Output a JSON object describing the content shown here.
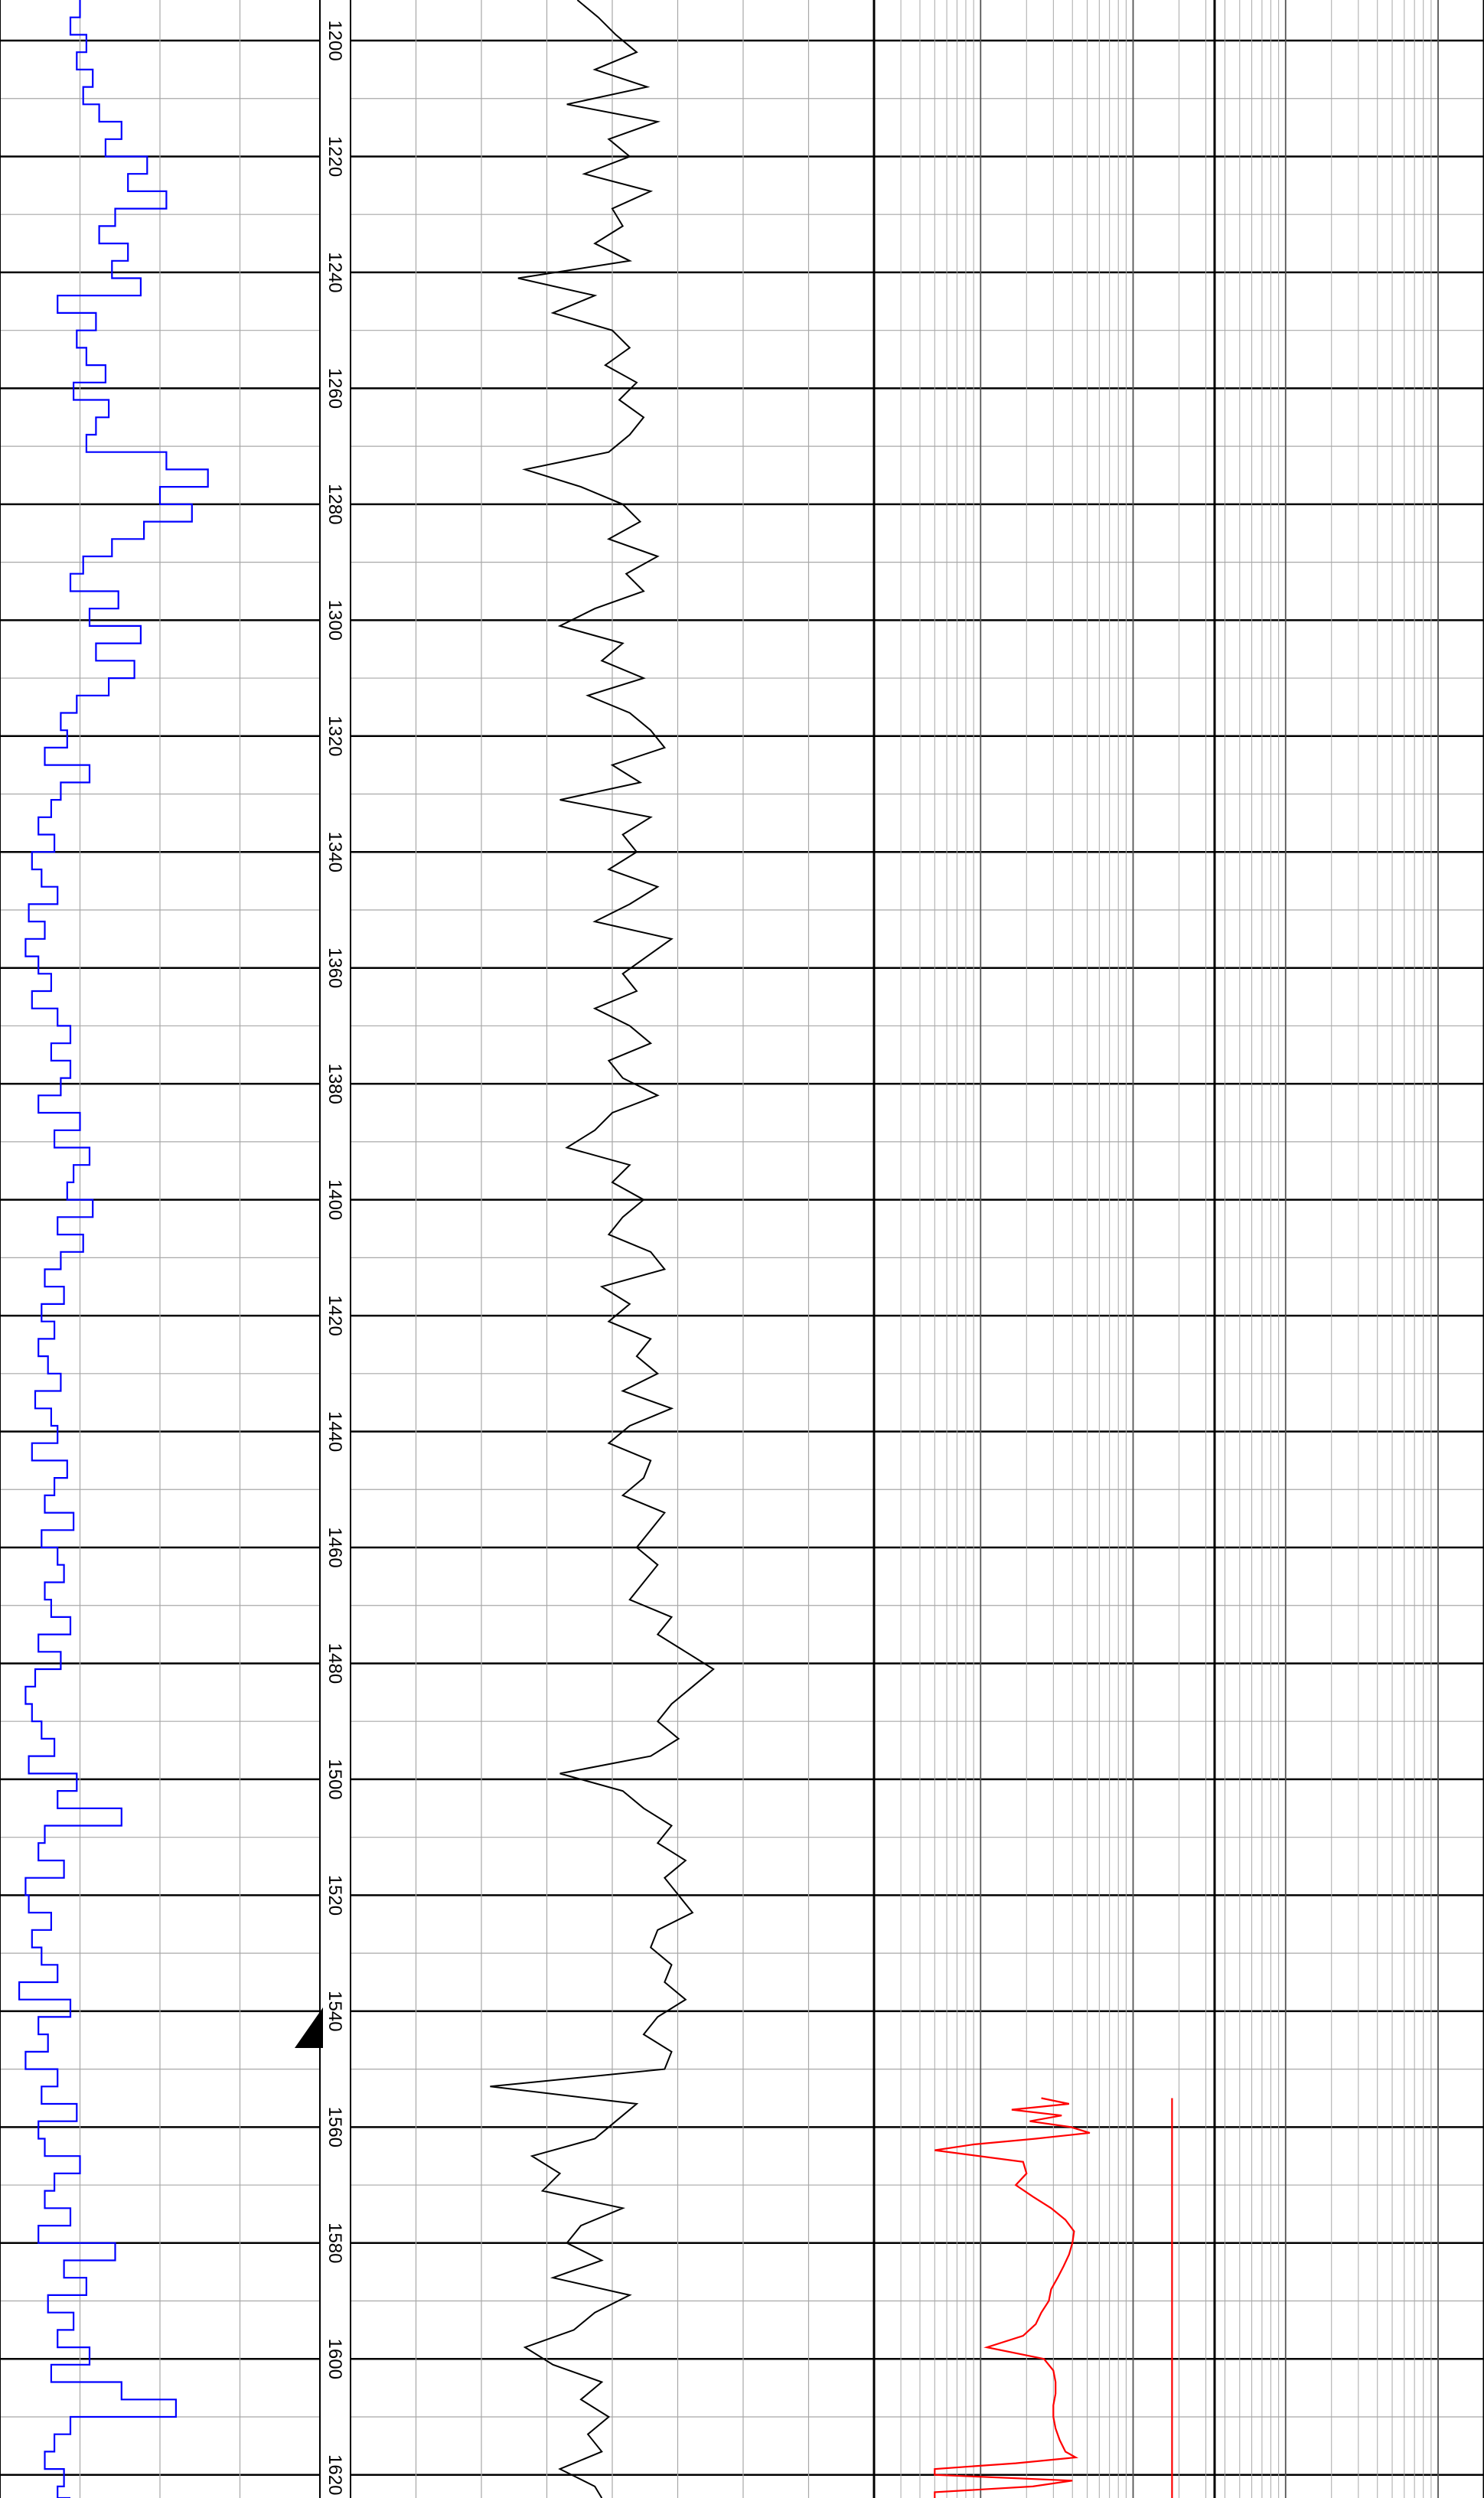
{
  "chart_data": {
    "type": "line",
    "title": "",
    "orientation": "vertical-depth",
    "depth_range": [
      1193,
      1624
    ],
    "depth_major_step": 20,
    "depth_minor_step": 10,
    "depth_labels": [
      "1200",
      "1220",
      "1240",
      "1260",
      "1280",
      "1300",
      "1320",
      "1340",
      "1360",
      "1380",
      "1400",
      "1420",
      "1440",
      "1460",
      "1480",
      "1500",
      "1520",
      "1540",
      "1560",
      "1580",
      "1600",
      "1620"
    ],
    "grid": true,
    "colors": {
      "track1_curve": "#0000ff",
      "track2_curve": "#000000",
      "track3_curves": "#ff0000",
      "grid_major": "#000000",
      "grid_minor": "#a8a8a8",
      "marker": "#000000"
    },
    "marker": {
      "shape": "triangle",
      "depth": 1542
    },
    "track1": {
      "scale": "linear",
      "x_range": [
        0,
        100
      ],
      "style": "step",
      "series": [
        {
          "depth": [
            1193,
            1196,
            1199,
            1202,
            1205,
            1208,
            1211,
            1214,
            1217,
            1220,
            1223,
            1226,
            1229,
            1232,
            1235,
            1238,
            1241,
            1244,
            1247,
            1250,
            1253,
            1256,
            1259,
            1262,
            1265,
            1268,
            1271,
            1274,
            1277,
            1280,
            1283,
            1286,
            1289,
            1292,
            1295,
            1298,
            1301,
            1304,
            1307,
            1310,
            1313,
            1316,
            1319,
            1322,
            1325,
            1328,
            1331,
            1334,
            1337,
            1340,
            1343,
            1346,
            1349,
            1352,
            1355,
            1358,
            1361,
            1364,
            1367,
            1370,
            1373,
            1376,
            1379,
            1382,
            1385,
            1388,
            1391,
            1394,
            1397,
            1400,
            1403,
            1406,
            1409,
            1412,
            1415,
            1418,
            1421,
            1424,
            1427,
            1430,
            1433,
            1436,
            1439,
            1442,
            1445,
            1448,
            1451,
            1454,
            1457,
            1460,
            1463,
            1466,
            1469,
            1472,
            1475,
            1478,
            1481,
            1484,
            1487,
            1490,
            1493,
            1496,
            1499,
            1502,
            1505,
            1508,
            1511,
            1514,
            1517,
            1520,
            1523,
            1526,
            1529,
            1532,
            1535,
            1538,
            1541,
            1544,
            1547,
            1550,
            1553,
            1556,
            1559,
            1562,
            1565,
            1568,
            1571,
            1574,
            1577,
            1580,
            1583,
            1586,
            1589,
            1592,
            1595,
            1598,
            1601,
            1604,
            1607,
            1610,
            1613,
            1616,
            1619,
            1622,
            1624
          ],
          "x": [
            25,
            22,
            27,
            24,
            29,
            26,
            31,
            38,
            33,
            46,
            40,
            52,
            36,
            31,
            40,
            35,
            44,
            18,
            30,
            24,
            27,
            33,
            23,
            34,
            30,
            27,
            52,
            65,
            50,
            60,
            45,
            35,
            26,
            22,
            37,
            28,
            44,
            30,
            42,
            34,
            24,
            19,
            21,
            14,
            28,
            19,
            16,
            12,
            17,
            10,
            13,
            18,
            9,
            14,
            8,
            12,
            16,
            10,
            18,
            22,
            16,
            22,
            19,
            12,
            25,
            17,
            28,
            23,
            21,
            29,
            18,
            26,
            19,
            14,
            20,
            13,
            17,
            12,
            15,
            19,
            11,
            16,
            18,
            10,
            21,
            17,
            14,
            23,
            13,
            18,
            20,
            14,
            16,
            22,
            12,
            19,
            11,
            8,
            10,
            13,
            17,
            9,
            24,
            18,
            38,
            14,
            12,
            20,
            8,
            9,
            16,
            10,
            13,
            18,
            6,
            22,
            12,
            15,
            8,
            18,
            13,
            24,
            12,
            14,
            25,
            17,
            14,
            22,
            12,
            36,
            20,
            27,
            15,
            23,
            18,
            28,
            16,
            38,
            55,
            22,
            17,
            14,
            20,
            18,
            22
          ]
        }
      ]
    },
    "track2": {
      "scale": "linear",
      "x_range": [
        0,
        150
      ],
      "style": "line",
      "series": [
        {
          "depth": [
            1193,
            1196,
            1199,
            1202,
            1205,
            1208,
            1211,
            1214,
            1217,
            1220,
            1223,
            1226,
            1229,
            1232,
            1235,
            1238,
            1241,
            1244,
            1247,
            1250,
            1253,
            1256,
            1259,
            1262,
            1265,
            1268,
            1271,
            1274,
            1277,
            1280,
            1283,
            1286,
            1289,
            1292,
            1295,
            1298,
            1301,
            1304,
            1307,
            1310,
            1313,
            1316,
            1319,
            1322,
            1325,
            1328,
            1331,
            1334,
            1337,
            1340,
            1343,
            1346,
            1349,
            1352,
            1355,
            1358,
            1361,
            1364,
            1367,
            1370,
            1373,
            1376,
            1379,
            1382,
            1385,
            1388,
            1391,
            1394,
            1397,
            1400,
            1403,
            1406,
            1409,
            1412,
            1415,
            1418,
            1421,
            1424,
            1427,
            1430,
            1433,
            1436,
            1439,
            1442,
            1445,
            1448,
            1451,
            1454,
            1457,
            1460,
            1463,
            1466,
            1469,
            1472,
            1475,
            1478,
            1481,
            1484,
            1487,
            1490,
            1493,
            1496,
            1499,
            1502,
            1505,
            1508,
            1511,
            1514,
            1517,
            1520,
            1523,
            1526,
            1529,
            1532,
            1535,
            1538,
            1541,
            1544,
            1547,
            1550,
            1553,
            1556,
            1559,
            1562,
            1565,
            1568,
            1571,
            1574,
            1577,
            1580,
            1583,
            1586,
            1589,
            1592,
            1595,
            1598,
            1601,
            1604,
            1607,
            1610,
            1613,
            1616,
            1619,
            1622,
            1624
          ],
          "x": [
            65,
            71,
            76,
            82,
            70,
            85,
            62,
            88,
            74,
            80,
            67,
            86,
            75,
            78,
            70,
            80,
            48,
            70,
            58,
            75,
            80,
            73,
            82,
            77,
            84,
            80,
            74,
            50,
            66,
            78,
            83,
            74,
            88,
            79,
            84,
            70,
            60,
            78,
            72,
            84,
            68,
            80,
            86,
            90,
            75,
            83,
            60,
            86,
            78,
            82,
            74,
            88,
            80,
            70,
            92,
            85,
            78,
            82,
            70,
            80,
            86,
            74,
            78,
            88,
            75,
            70,
            62,
            80,
            75,
            84,
            78,
            74,
            86,
            90,
            72,
            80,
            74,
            86,
            82,
            88,
            78,
            92,
            80,
            74,
            86,
            84,
            78,
            90,
            86,
            82,
            88,
            84,
            80,
            92,
            88,
            96,
            104,
            98,
            92,
            88,
            94,
            86,
            60,
            78,
            84,
            92,
            88,
            96,
            90,
            94,
            98,
            88,
            86,
            92,
            90,
            96,
            88,
            84,
            92,
            90,
            40,
            82,
            76,
            70,
            52,
            60,
            55,
            78,
            66,
            62,
            72,
            58,
            80,
            70,
            64,
            50,
            58,
            72,
            66,
            74,
            68,
            72,
            60,
            70,
            72
          ]
        }
      ]
    },
    "track3": {
      "scale": "logarithmic",
      "x_range": [
        0.2,
        2000
      ],
      "style": "line",
      "series": [
        {
          "depth": [
            1555,
            1556,
            1557,
            1558,
            1559,
            1560,
            1561,
            1562,
            1563,
            1564,
            1566,
            1568,
            1570,
            1572,
            1574,
            1576,
            1578,
            1580,
            1582,
            1584,
            1586,
            1588,
            1590,
            1592,
            1594,
            1596,
            1598,
            1600,
            1602,
            1604,
            1606,
            1608,
            1610,
            1612,
            1614,
            1616,
            1617,
            1618,
            1619,
            1620,
            1621,
            1622,
            1623,
            1624
          ],
          "x": [
            2.5,
            3.8,
            1.6,
            3.4,
            2.1,
            3.9,
            5.2,
            2.3,
            0.9,
            0.5,
            1.9,
            2.0,
            1.7,
            2.2,
            2.9,
            3.6,
            4.1,
            4.0,
            3.8,
            3.5,
            3.2,
            2.9,
            2.8,
            2.5,
            2.3,
            1.9,
            1.1,
            2.6,
            3.0,
            3.1,
            3.1,
            3.0,
            3.0,
            3.1,
            3.3,
            3.6,
            4.2,
            1.7,
            0.5,
            0.5,
            4.0,
            2.2,
            0.5,
            0.5
          ]
        },
        {
          "depth": [
            1555,
            1624
          ],
          "x": [
            18,
            18
          ]
        }
      ]
    }
  }
}
